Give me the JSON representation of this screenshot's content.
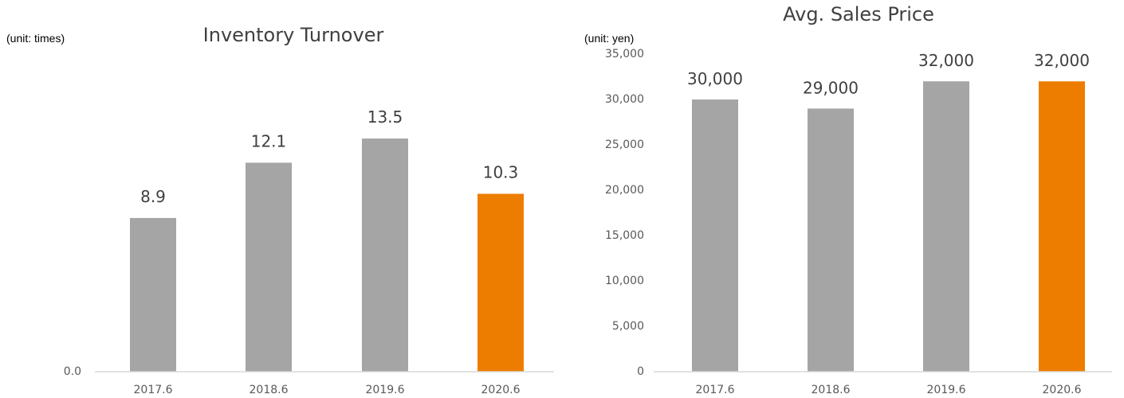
{
  "colors": {
    "bar": "#A5A5A5",
    "highlight_bar": "#ED7D00",
    "axis_line": "#D9D9D9",
    "title_text": "#404040",
    "data_label_text": "#404040",
    "tick_text": "#595959",
    "unit_text": "#000000"
  },
  "chart_data": [
    {
      "type": "bar",
      "title": "Inventory Turnover",
      "unit_label": "(unit: times)",
      "xlabel": "",
      "ylabel": "",
      "categories": [
        "2017.6",
        "2018.6",
        "2019.6",
        "2020.6"
      ],
      "values": [
        8.9,
        12.1,
        13.5,
        10.3
      ],
      "value_labels": [
        "8.9",
        "12.1",
        "13.5",
        "10.3"
      ],
      "bar_colors": [
        "#A5A5A5",
        "#A5A5A5",
        "#A5A5A5",
        "#ED7D00"
      ],
      "y_ticks": [
        {
          "value": 0,
          "label": "0.0"
        }
      ],
      "ylim": [
        0,
        20
      ],
      "grid": false
    },
    {
      "type": "bar",
      "title": "Avg. Sales Price",
      "unit_label": "(unit: yen)",
      "xlabel": "",
      "ylabel": "",
      "categories": [
        "2017.6",
        "2018.6",
        "2019.6",
        "2020.6"
      ],
      "values": [
        30000,
        29000,
        32000,
        32000
      ],
      "value_labels": [
        "30,000",
        "29,000",
        "32,000",
        "32,000"
      ],
      "bar_colors": [
        "#A5A5A5",
        "#A5A5A5",
        "#A5A5A5",
        "#ED7D00"
      ],
      "y_ticks": [
        {
          "value": 0,
          "label": "0"
        },
        {
          "value": 5000,
          "label": "5,000"
        },
        {
          "value": 10000,
          "label": "10,000"
        },
        {
          "value": 15000,
          "label": "15,000"
        },
        {
          "value": 20000,
          "label": "20,000"
        },
        {
          "value": 25000,
          "label": "25,000"
        },
        {
          "value": 30000,
          "label": "30,000"
        },
        {
          "value": 35000,
          "label": "35,000"
        }
      ],
      "ylim": [
        0,
        35000
      ],
      "grid": false
    }
  ]
}
